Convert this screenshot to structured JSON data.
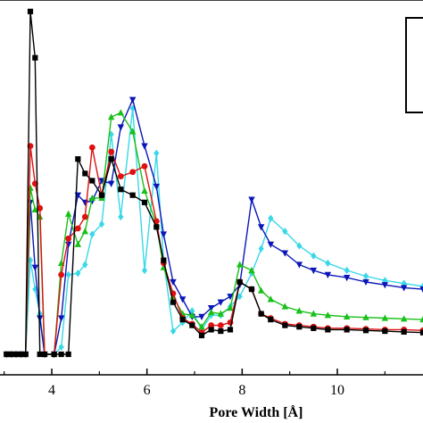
{
  "chart_data": {
    "type": "line",
    "xlabel": "Pore Width [Å]",
    "ylabel": "",
    "title": "",
    "xlim": [
      2.95,
      11.8
    ],
    "ylim": [
      0,
      24
    ],
    "x_ticks": [
      "4",
      "6",
      "8",
      "10"
    ],
    "grid": false,
    "legend": "top-right (cut off at image edge)",
    "series": [
      {
        "color": "#000000",
        "marker": "square",
        "points": [
          [
            3.05,
            0
          ],
          [
            3.15,
            0
          ],
          [
            3.25,
            0
          ],
          [
            3.35,
            0
          ],
          [
            3.45,
            0
          ],
          [
            3.55,
            23.7
          ],
          [
            3.65,
            20.5
          ],
          [
            3.75,
            0
          ],
          [
            3.85,
            0
          ],
          [
            4.05,
            0
          ],
          [
            4.2,
            0
          ],
          [
            4.35,
            0
          ],
          [
            4.55,
            13.5
          ],
          [
            4.7,
            12.5
          ],
          [
            4.85,
            12.0
          ],
          [
            5.05,
            11.0
          ],
          [
            5.25,
            13.5
          ],
          [
            5.45,
            11.4
          ],
          [
            5.7,
            11.0
          ],
          [
            5.95,
            10.5
          ],
          [
            6.2,
            8.8
          ],
          [
            6.35,
            6.5
          ],
          [
            6.55,
            3.6
          ],
          [
            6.75,
            2.4
          ],
          [
            6.95,
            2.0
          ],
          [
            7.15,
            1.3
          ],
          [
            7.35,
            1.7
          ],
          [
            7.55,
            1.6
          ],
          [
            7.75,
            1.7
          ],
          [
            7.95,
            5.0
          ],
          [
            8.2,
            4.5
          ],
          [
            8.4,
            2.8
          ],
          [
            8.6,
            2.4
          ],
          [
            8.9,
            2.0
          ],
          [
            9.2,
            1.9
          ],
          [
            9.5,
            1.8
          ],
          [
            9.8,
            1.7
          ],
          [
            10.2,
            1.7
          ],
          [
            10.6,
            1.65
          ],
          [
            11.0,
            1.6
          ],
          [
            11.4,
            1.55
          ],
          [
            11.8,
            1.5
          ]
        ]
      },
      {
        "color": "#e01010",
        "marker": "circle",
        "points": [
          [
            3.05,
            0
          ],
          [
            3.15,
            0
          ],
          [
            3.25,
            0
          ],
          [
            3.35,
            0
          ],
          [
            3.45,
            0
          ],
          [
            3.55,
            14.4
          ],
          [
            3.65,
            11.8
          ],
          [
            3.75,
            10.1
          ],
          [
            3.85,
            0
          ],
          [
            4.05,
            0
          ],
          [
            4.2,
            5.5
          ],
          [
            4.35,
            8.0
          ],
          [
            4.55,
            8.7
          ],
          [
            4.7,
            9.5
          ],
          [
            4.85,
            14.3
          ],
          [
            5.05,
            11.0
          ],
          [
            5.25,
            14.0
          ],
          [
            5.45,
            12.3
          ],
          [
            5.7,
            12.6
          ],
          [
            5.95,
            13.0
          ],
          [
            6.2,
            9.2
          ],
          [
            6.35,
            6.3
          ],
          [
            6.55,
            4.2
          ],
          [
            6.75,
            2.5
          ],
          [
            6.95,
            2.1
          ],
          [
            7.15,
            1.5
          ],
          [
            7.35,
            2.0
          ],
          [
            7.55,
            2.0
          ],
          [
            7.75,
            2.2
          ],
          [
            7.95,
            5.0
          ],
          [
            8.2,
            4.5
          ],
          [
            8.4,
            2.8
          ],
          [
            8.6,
            2.5
          ],
          [
            8.9,
            2.1
          ],
          [
            9.2,
            2.0
          ],
          [
            9.5,
            1.9
          ],
          [
            9.8,
            1.8
          ],
          [
            10.2,
            1.8
          ],
          [
            10.6,
            1.75
          ],
          [
            11.0,
            1.7
          ],
          [
            11.4,
            1.7
          ],
          [
            11.8,
            1.65
          ]
        ]
      },
      {
        "color": "#18c018",
        "marker": "triangle-up",
        "points": [
          [
            3.05,
            0
          ],
          [
            3.15,
            0
          ],
          [
            3.25,
            0
          ],
          [
            3.35,
            0
          ],
          [
            3.45,
            0
          ],
          [
            3.55,
            11.5
          ],
          [
            3.65,
            10.0
          ],
          [
            3.75,
            9.5
          ],
          [
            3.85,
            0
          ],
          [
            4.05,
            0
          ],
          [
            4.2,
            6.3
          ],
          [
            4.35,
            9.7
          ],
          [
            4.55,
            7.6
          ],
          [
            4.7,
            8.5
          ],
          [
            4.85,
            10.8
          ],
          [
            5.05,
            10.8
          ],
          [
            5.25,
            16.4
          ],
          [
            5.45,
            16.7
          ],
          [
            5.7,
            15.4
          ],
          [
            5.95,
            11.3
          ],
          [
            6.2,
            9.0
          ],
          [
            6.35,
            6.0
          ],
          [
            6.55,
            4.0
          ],
          [
            6.75,
            2.8
          ],
          [
            6.95,
            2.7
          ],
          [
            7.15,
            1.9
          ],
          [
            7.35,
            2.9
          ],
          [
            7.55,
            2.8
          ],
          [
            7.75,
            3.2
          ],
          [
            7.95,
            6.2
          ],
          [
            8.2,
            5.8
          ],
          [
            8.4,
            4.4
          ],
          [
            8.6,
            3.8
          ],
          [
            8.9,
            3.3
          ],
          [
            9.2,
            3.0
          ],
          [
            9.5,
            2.8
          ],
          [
            9.8,
            2.7
          ],
          [
            10.2,
            2.6
          ],
          [
            10.6,
            2.55
          ],
          [
            11.0,
            2.5
          ],
          [
            11.4,
            2.45
          ],
          [
            11.8,
            2.4
          ]
        ]
      },
      {
        "color": "#0a16b8",
        "marker": "triangle-down",
        "points": [
          [
            3.05,
            0
          ],
          [
            3.15,
            0
          ],
          [
            3.25,
            0
          ],
          [
            3.35,
            0
          ],
          [
            3.45,
            0
          ],
          [
            3.55,
            10.5
          ],
          [
            3.65,
            6.0
          ],
          [
            3.75,
            2.5
          ],
          [
            3.85,
            0
          ],
          [
            4.05,
            0
          ],
          [
            4.2,
            2.5
          ],
          [
            4.35,
            7.6
          ],
          [
            4.55,
            11.0
          ],
          [
            4.7,
            10.5
          ],
          [
            4.85,
            10.6
          ],
          [
            5.05,
            12.0
          ],
          [
            5.25,
            11.8
          ],
          [
            5.45,
            15.7
          ],
          [
            5.7,
            17.6
          ],
          [
            5.95,
            14.4
          ],
          [
            6.2,
            11.6
          ],
          [
            6.35,
            8.3
          ],
          [
            6.55,
            5.0
          ],
          [
            6.75,
            3.8
          ],
          [
            6.95,
            2.6
          ],
          [
            7.15,
            2.6
          ],
          [
            7.35,
            3.2
          ],
          [
            7.55,
            3.6
          ],
          [
            7.75,
            4.0
          ],
          [
            7.95,
            4.8
          ],
          [
            8.2,
            10.7
          ],
          [
            8.4,
            8.8
          ],
          [
            8.6,
            7.6
          ],
          [
            8.9,
            7.0
          ],
          [
            9.2,
            6.2
          ],
          [
            9.5,
            5.8
          ],
          [
            9.8,
            5.5
          ],
          [
            10.2,
            5.3
          ],
          [
            10.6,
            5.0
          ],
          [
            11.0,
            4.8
          ],
          [
            11.4,
            4.6
          ],
          [
            11.8,
            4.5
          ]
        ]
      },
      {
        "color": "#38d8e8",
        "marker": "diamond",
        "points": [
          [
            3.05,
            0
          ],
          [
            3.15,
            0
          ],
          [
            3.25,
            0
          ],
          [
            3.35,
            0
          ],
          [
            3.45,
            0
          ],
          [
            3.55,
            6.5
          ],
          [
            3.65,
            4.5
          ],
          [
            3.75,
            2.8
          ],
          [
            3.85,
            0
          ],
          [
            4.05,
            0
          ],
          [
            4.2,
            0.5
          ],
          [
            4.35,
            5.5
          ],
          [
            4.55,
            5.6
          ],
          [
            4.7,
            6.2
          ],
          [
            4.85,
            8.3
          ],
          [
            5.05,
            9.0
          ],
          [
            5.25,
            15.2
          ],
          [
            5.45,
            9.5
          ],
          [
            5.7,
            17.0
          ],
          [
            5.95,
            5.8
          ],
          [
            6.2,
            13.9
          ],
          [
            6.35,
            6.5
          ],
          [
            6.55,
            1.6
          ],
          [
            6.75,
            2.2
          ],
          [
            6.95,
            3.0
          ],
          [
            7.15,
            1.7
          ],
          [
            7.35,
            2.7
          ],
          [
            7.55,
            2.7
          ],
          [
            7.75,
            3.3
          ],
          [
            7.95,
            4.0
          ],
          [
            8.2,
            5.6
          ],
          [
            8.4,
            7.3
          ],
          [
            8.6,
            9.4
          ],
          [
            8.9,
            8.5
          ],
          [
            9.2,
            7.5
          ],
          [
            9.5,
            6.8
          ],
          [
            9.8,
            6.3
          ],
          [
            10.2,
            5.8
          ],
          [
            10.6,
            5.4
          ],
          [
            11.0,
            5.1
          ],
          [
            11.4,
            4.9
          ],
          [
            11.8,
            4.7
          ]
        ]
      }
    ]
  }
}
